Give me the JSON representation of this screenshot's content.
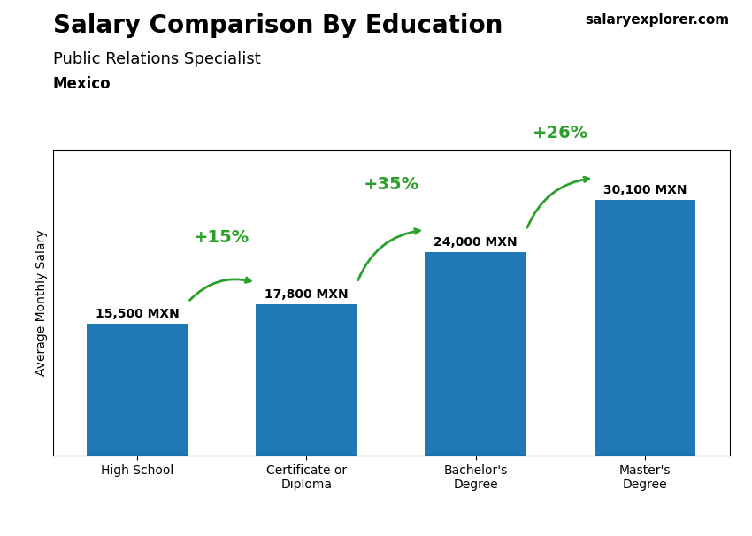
{
  "chart_data": {
    "type": "bar",
    "title": "Salary Comparison By Education",
    "subtitle": "Public Relations Specialist",
    "country": "Mexico",
    "source": "salaryexplorer.com",
    "y_label": "Average Monthly Salary",
    "categories": [
      "High School",
      "Certificate or\nDiploma",
      "Bachelor's\nDegree",
      "Master's\nDegree"
    ],
    "values": [
      15500,
      17800,
      24000,
      30100
    ],
    "value_labels": [
      "15,500 MXN",
      "17,800 MXN",
      "24,000 MXN",
      "30,100 MXN"
    ],
    "data_labels": true,
    "annotations": [
      "+15%",
      "+35%",
      "+26%"
    ],
    "ylim": [
      0,
      36000
    ],
    "yticks": [],
    "tick_labels": "x",
    "grid": false
  }
}
